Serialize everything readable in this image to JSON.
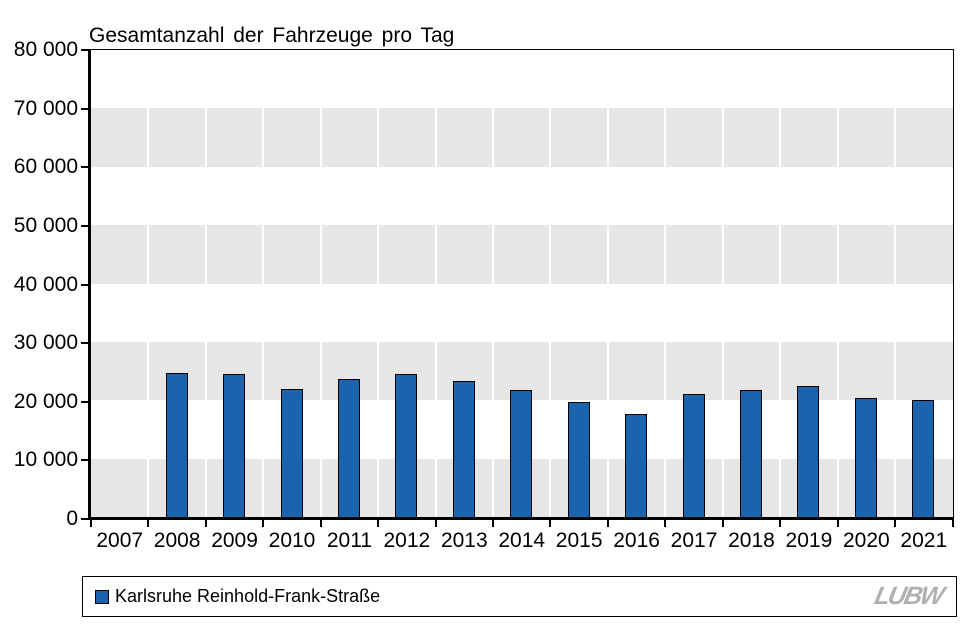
{
  "chart_data": {
    "type": "bar",
    "title": "Gesamtanzahl der Fahrzeuge pro Tag",
    "xlabel": "",
    "ylabel": "",
    "categories": [
      "2007",
      "2008",
      "2009",
      "2010",
      "2011",
      "2012",
      "2013",
      "2014",
      "2015",
      "2016",
      "2017",
      "2018",
      "2019",
      "2020",
      "2021"
    ],
    "series": [
      {
        "name": "Karlsruhe Reinhold-Frank-Straße",
        "values": [
          null,
          24500,
          24300,
          21800,
          23600,
          24400,
          23100,
          21600,
          19600,
          17500,
          21000,
          21700,
          22300,
          20300,
          20000
        ]
      }
    ],
    "ylim": [
      0,
      80000
    ],
    "ytick_interval": 10000,
    "ytick_labels": [
      "0",
      "10 000",
      "20 000",
      "30 000",
      "40 000",
      "50 000",
      "60 000",
      "70 000",
      "80 000"
    ],
    "grid": "alternating-horizontal-bands-with-white-category-separators",
    "legend_position": "bottom",
    "colors": {
      "bar_fill": "#1C63AE",
      "bar_border": "#000000",
      "band_gray": "#E6E6E6",
      "band_white": "#FFFFFF",
      "axis": "#000000",
      "text": "#000000"
    }
  },
  "legend": {
    "label": "Karlsruhe Reinhold-Frank-Straße",
    "marker_color": "#1C63AE"
  },
  "logo": {
    "text": "LUBW",
    "color": "#B0B0B0"
  }
}
